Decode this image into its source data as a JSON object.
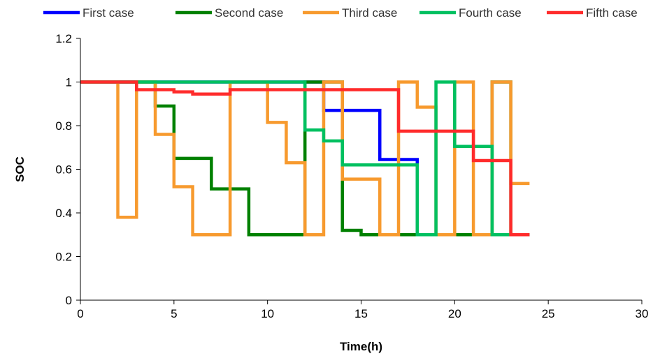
{
  "chart_data": {
    "type": "line",
    "step": true,
    "xlabel": "Time(h)",
    "ylabel": "SOC",
    "xlim": [
      0,
      30
    ],
    "ylim": [
      0,
      1.2
    ],
    "x_ticks": [
      "0",
      "5",
      "10",
      "15",
      "20",
      "25",
      "30"
    ],
    "y_ticks": [
      "0",
      "0.2",
      "0.4",
      "0.6",
      "0.8",
      "1",
      "1.2"
    ],
    "grid": false,
    "legend_position": "top",
    "series": [
      {
        "name": "First case",
        "color": "#0000ff",
        "x": [
          0,
          3,
          4,
          5,
          6,
          7,
          8,
          9,
          10,
          11,
          12,
          13,
          14,
          15,
          16,
          17,
          18,
          19,
          20,
          21,
          22,
          23,
          24
        ],
        "y": [
          1,
          1,
          1,
          1,
          1,
          1,
          1,
          1,
          1,
          1,
          1,
          0.87,
          0.87,
          0.87,
          0.645,
          0.645,
          0.3,
          0.3,
          0.3,
          0.3,
          0.3,
          0.3,
          0.3
        ]
      },
      {
        "name": "Second case",
        "color": "#008000",
        "x": [
          0,
          3,
          4,
          5,
          6,
          7,
          8,
          9,
          10,
          11,
          12,
          13,
          14,
          15,
          16,
          17,
          18,
          19,
          20,
          21,
          22,
          23,
          24
        ],
        "y": [
          1,
          1,
          0.89,
          0.65,
          0.65,
          0.51,
          0.51,
          0.3,
          0.3,
          0.3,
          1,
          1,
          0.32,
          0.3,
          0.3,
          0.3,
          0.3,
          0.3,
          0.3,
          0.3,
          1,
          0.3,
          0.3
        ]
      },
      {
        "name": "Third case",
        "color": "#f79a2e",
        "x": [
          0,
          2,
          3,
          4,
          5,
          6,
          7,
          8,
          9,
          10,
          11,
          12,
          13,
          14,
          15,
          16,
          17,
          18,
          19,
          20,
          21,
          22,
          23,
          24
        ],
        "y": [
          1,
          0.38,
          1,
          0.76,
          0.52,
          0.3,
          0.3,
          1,
          1,
          0.815,
          0.63,
          0.3,
          1,
          0.555,
          0.555,
          0.3,
          1,
          0.885,
          0.3,
          1,
          0.3,
          1,
          0.535,
          0.535
        ]
      },
      {
        "name": "Fourth case",
        "color": "#00c060",
        "x": [
          0,
          3,
          4,
          5,
          6,
          7,
          8,
          9,
          10,
          11,
          12,
          13,
          14,
          15,
          16,
          17,
          18,
          19,
          20,
          21,
          22,
          23,
          24
        ],
        "y": [
          1,
          1,
          1,
          1,
          1,
          1,
          1,
          1,
          1,
          1,
          0.78,
          0.73,
          0.62,
          0.62,
          0.62,
          0.62,
          0.3,
          1,
          0.705,
          0.705,
          0.3,
          0.3,
          0.3
        ]
      },
      {
        "name": "Fifth case",
        "color": "#ff2b2b",
        "x": [
          0,
          3,
          4,
          5,
          6,
          7,
          8,
          9,
          10,
          11,
          12,
          13,
          14,
          15,
          16,
          17,
          18,
          19,
          20,
          21,
          22,
          23,
          24
        ],
        "y": [
          1,
          0.965,
          0.965,
          0.955,
          0.945,
          0.945,
          0.965,
          0.965,
          0.965,
          0.965,
          0.965,
          0.965,
          0.965,
          0.965,
          0.965,
          0.775,
          0.775,
          0.775,
          0.775,
          0.64,
          0.64,
          0.3,
          0.3
        ]
      }
    ]
  }
}
